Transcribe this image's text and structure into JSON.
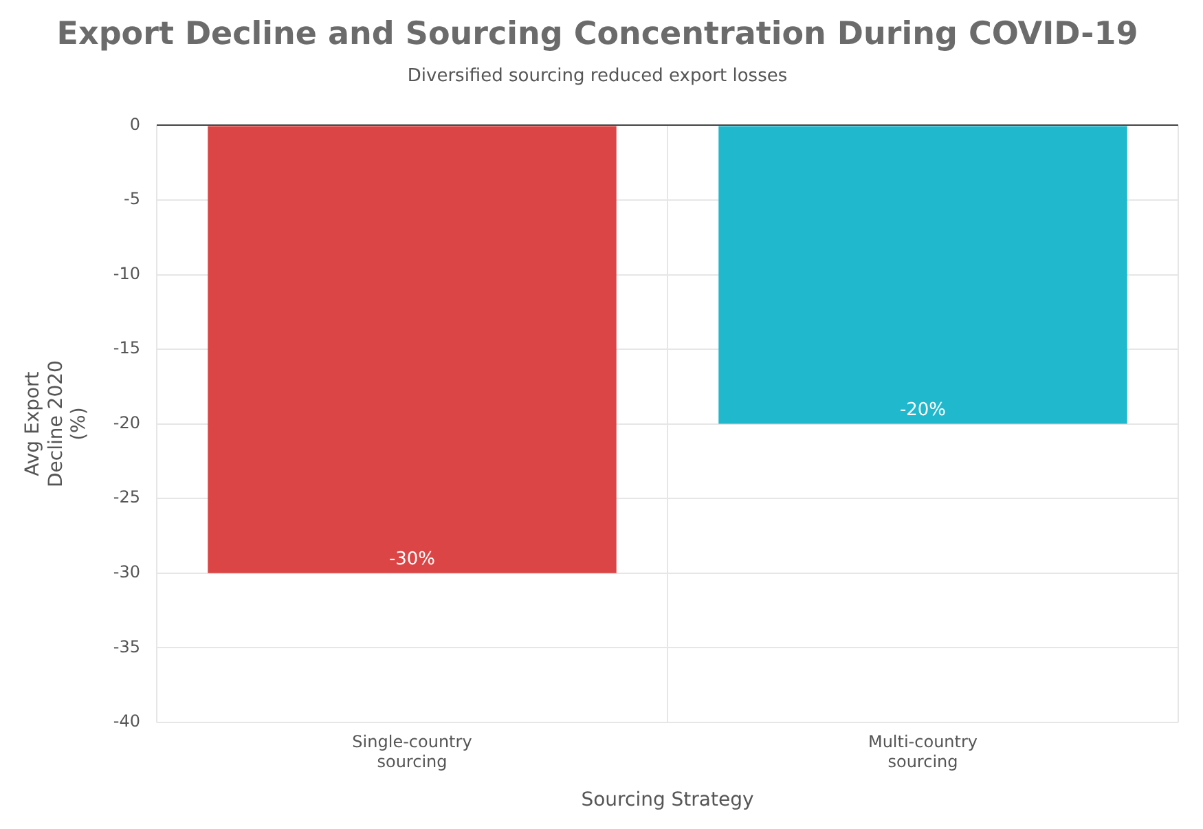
{
  "chart_data": {
    "type": "bar",
    "title": "Export Decline and Sourcing Concentration During COVID-19",
    "subtitle": "Diversified sourcing reduced export losses",
    "xlabel": "Sourcing Strategy",
    "ylabel": "Avg Export Decline 2020 (%)",
    "categories": [
      "Single-country sourcing",
      "Multi-country sourcing"
    ],
    "values": [
      -30,
      -20
    ],
    "colors": [
      "#db4545",
      "#1fb8cd"
    ],
    "value_labels": [
      "-30%",
      "-20%"
    ],
    "ylim": [
      -40,
      0
    ],
    "yticks": [
      -40,
      -35,
      -30,
      -25,
      -20,
      -15,
      -10,
      -5,
      0
    ],
    "grid": true,
    "legend": false
  }
}
